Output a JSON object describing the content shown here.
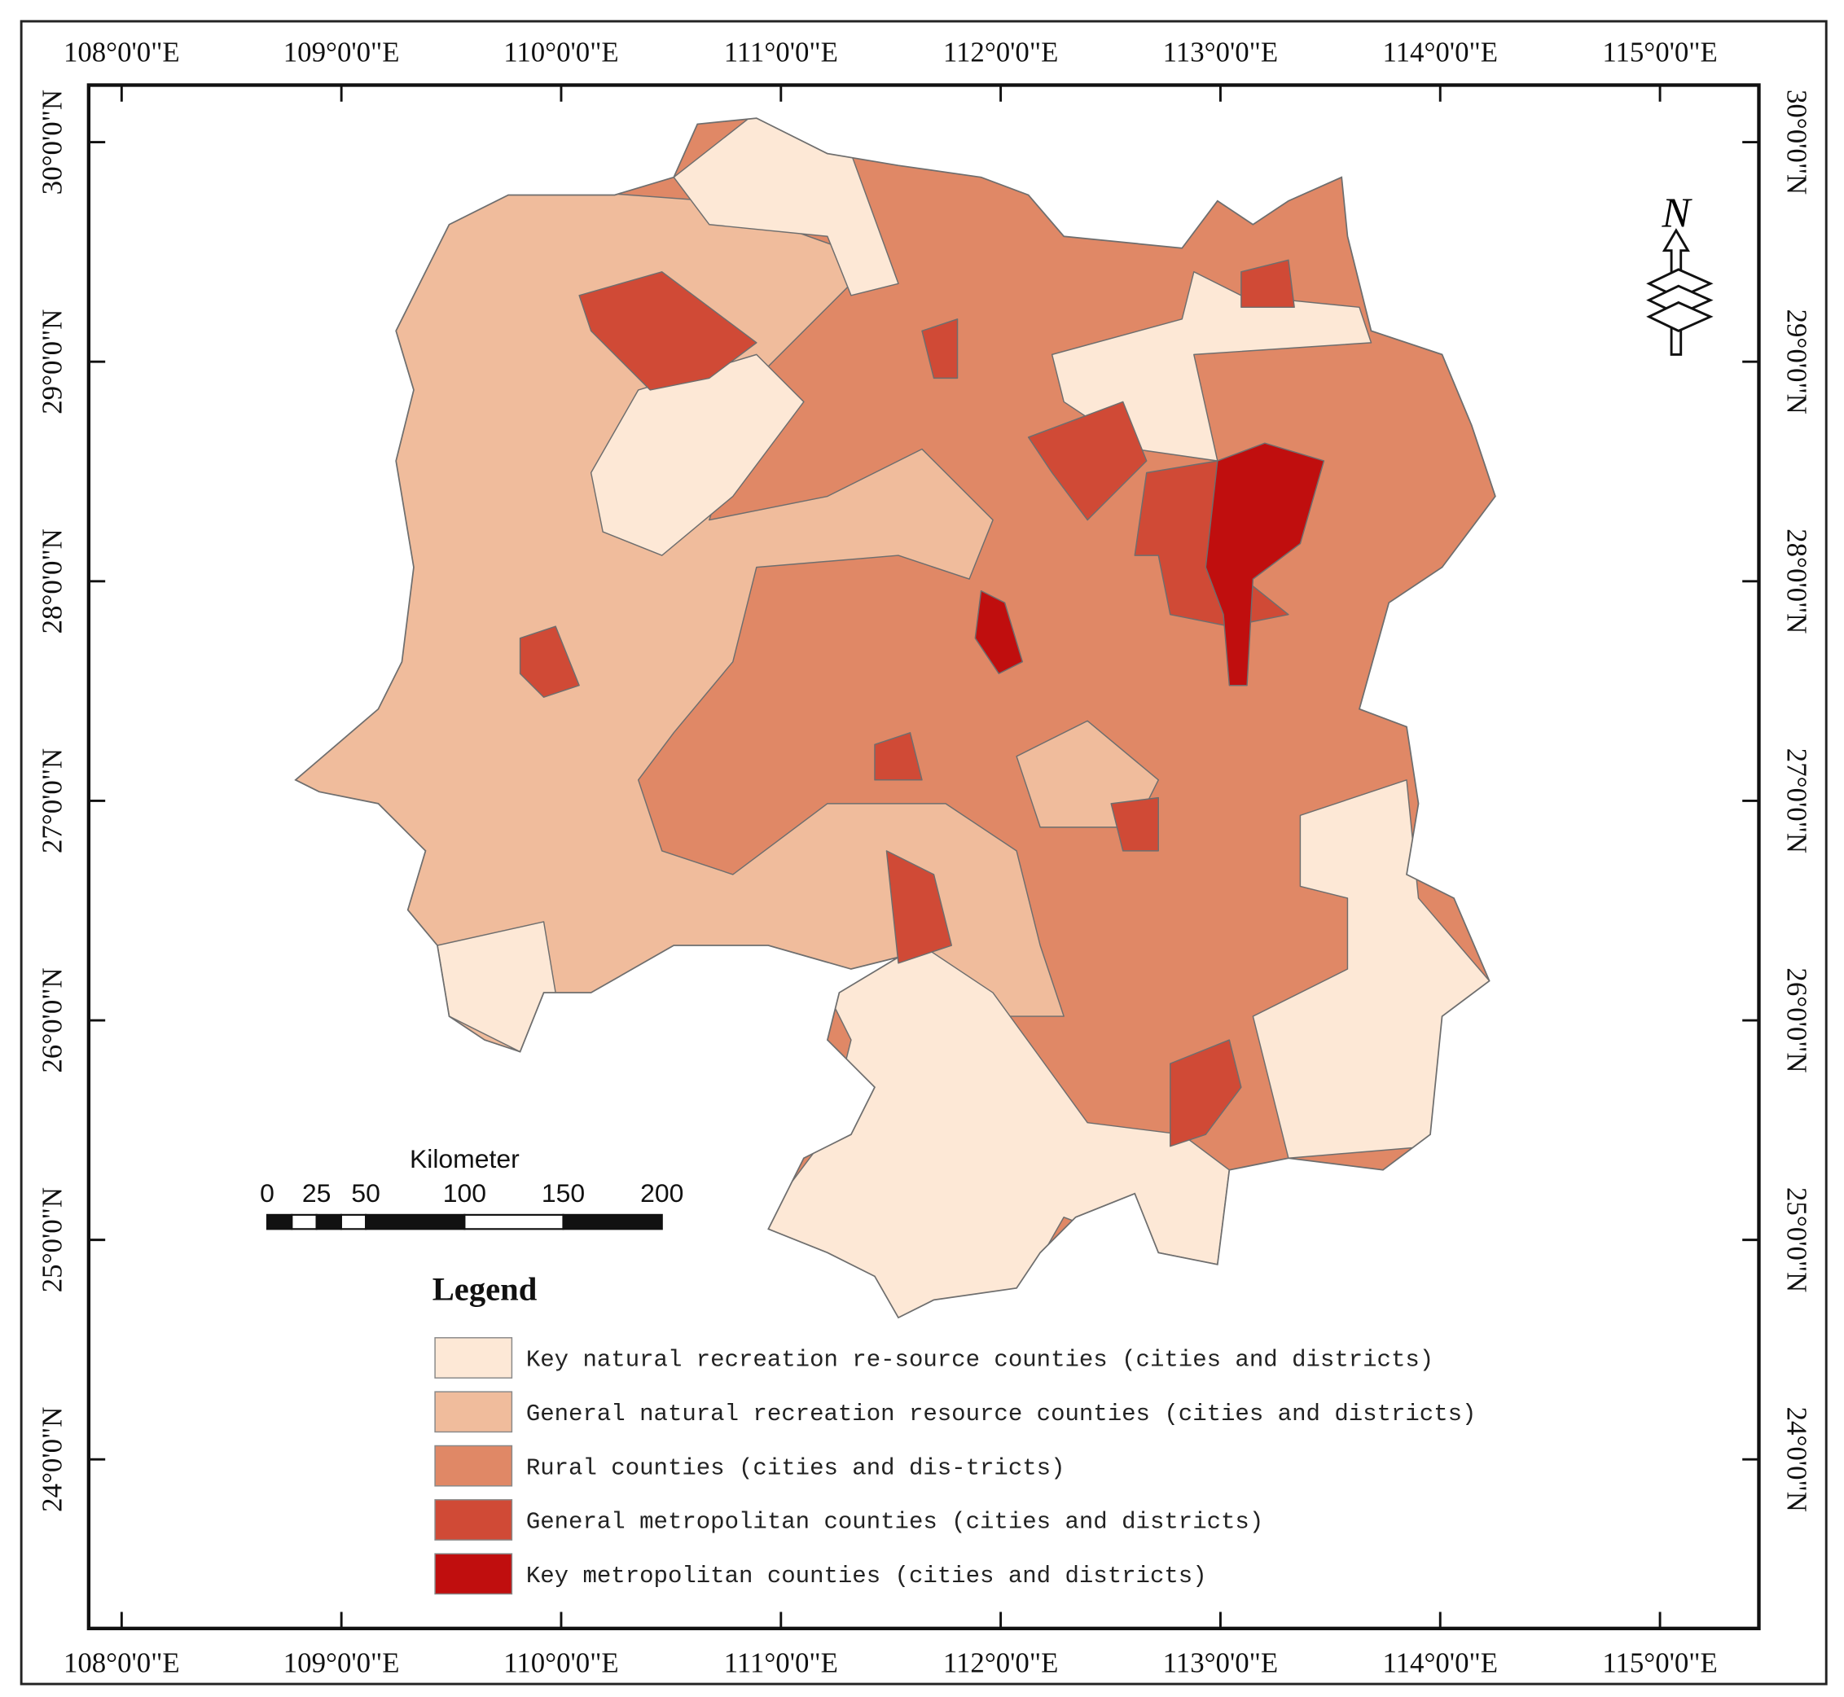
{
  "map": {
    "extent": {
      "lon": [
        107.85,
        115.45
      ],
      "lat": [
        23.23,
        30.26
      ]
    },
    "longitudes": [
      {
        "value": 108,
        "label": "108°0'0\"E"
      },
      {
        "value": 109,
        "label": "109°0'0\"E"
      },
      {
        "value": 110,
        "label": "110°0'0\"E"
      },
      {
        "value": 111,
        "label": "111°0'0\"E"
      },
      {
        "value": 112,
        "label": "112°0'0\"E"
      },
      {
        "value": 113,
        "label": "113°0'0\"E"
      },
      {
        "value": 114,
        "label": "114°0'0\"E"
      },
      {
        "value": 115,
        "label": "115°0'0\"E"
      }
    ],
    "latitudes": [
      {
        "value": 24,
        "label": "24°0'0\"N"
      },
      {
        "value": 25,
        "label": "25°0'0\"N"
      },
      {
        "value": 26,
        "label": "26°0'0\"N"
      },
      {
        "value": 27,
        "label": "27°0'0\"N"
      },
      {
        "value": 28,
        "label": "28°0'0\"N"
      },
      {
        "value": 29,
        "label": "29°0'0\"N"
      },
      {
        "value": 30,
        "label": "30°0'0\"N"
      }
    ],
    "north_arrow": "N",
    "scale_bar": {
      "title": "Kilometer",
      "ticks": [
        0,
        25,
        50,
        100,
        150,
        200
      ]
    },
    "legend": {
      "title": "Legend",
      "items": [
        {
          "label": "Key natural recreation re-source counties (cities and districts)",
          "color": "#fde8d6"
        },
        {
          "label": "General natural recreation resource counties (cities and districts)",
          "color": "#f0bc9c"
        },
        {
          "label": "Rural counties (cities and dis-tricts)",
          "color": "#e08866"
        },
        {
          "label": "General metropolitan counties (cities and districts)",
          "color": "#d04a36"
        },
        {
          "label": "Key metropolitan counties (cities and districts)",
          "color": "#c00e0e"
        }
      ]
    }
  }
}
